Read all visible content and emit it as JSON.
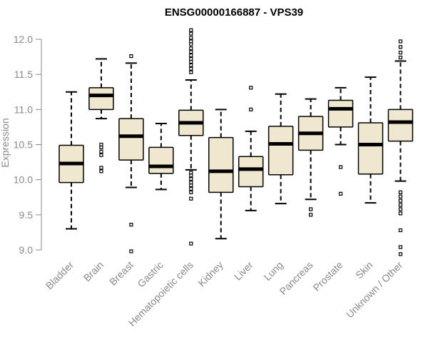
{
  "chart_data": {
    "type": "box",
    "title": "ENSG00000166887 - VPS39",
    "xlabel": "",
    "ylabel": "Expression",
    "ylim": [
      8.9,
      12.15
    ],
    "yticks": [
      9.0,
      9.5,
      10.0,
      10.5,
      11.0,
      11.5,
      12.0
    ],
    "ytick_labels": [
      "9.0",
      "9.5",
      "10.0",
      "10.5",
      "11.0",
      "11.5",
      "12.0"
    ],
    "box_color": "#efe8cf",
    "categories": [
      "Bladder",
      "Brain",
      "Breast",
      "Gastric",
      "Hematopoietic cells",
      "Kidney",
      "Liver",
      "Lung",
      "Pancreas",
      "Prostate",
      "Skin",
      "Unknown / Other"
    ],
    "boxes": [
      {
        "whisker_low": 9.3,
        "q1": 9.96,
        "median": 10.23,
        "q3": 10.49,
        "whisker_high": 11.25,
        "outliers": []
      },
      {
        "whisker_low": 10.87,
        "q1": 11.0,
        "median": 11.2,
        "q3": 11.31,
        "whisker_high": 11.72,
        "outliers": [
          10.5,
          10.46,
          10.4,
          10.35,
          10.17,
          10.12
        ]
      },
      {
        "whisker_low": 9.89,
        "q1": 10.28,
        "median": 10.62,
        "q3": 10.87,
        "whisker_high": 11.66,
        "outliers": [
          11.76,
          9.36,
          8.98
        ]
      },
      {
        "whisker_low": 9.86,
        "q1": 10.09,
        "median": 10.19,
        "q3": 10.46,
        "whisker_high": 10.8,
        "outliers": []
      },
      {
        "whisker_low": 10.14,
        "q1": 10.63,
        "median": 10.81,
        "q3": 10.99,
        "whisker_high": 11.42,
        "outliers": [
          12.13,
          12.08,
          12.02,
          11.97,
          11.93,
          11.87,
          11.82,
          11.77,
          11.72,
          11.68,
          11.63,
          11.58,
          11.53,
          10.1,
          10.06,
          10.01,
          9.96,
          9.92,
          9.87,
          9.82,
          9.73,
          9.09
        ]
      },
      {
        "whisker_low": 9.16,
        "q1": 9.82,
        "median": 10.12,
        "q3": 10.6,
        "whisker_high": 11.0,
        "outliers": []
      },
      {
        "whisker_low": 9.56,
        "q1": 9.9,
        "median": 10.15,
        "q3": 10.33,
        "whisker_high": 10.69,
        "outliers": [
          11.31,
          11.0
        ]
      },
      {
        "whisker_low": 9.66,
        "q1": 10.07,
        "median": 10.51,
        "q3": 10.76,
        "whisker_high": 11.22,
        "outliers": []
      },
      {
        "whisker_low": 9.72,
        "q1": 10.42,
        "median": 10.66,
        "q3": 10.9,
        "whisker_high": 11.15,
        "outliers": [
          9.58,
          9.5
        ]
      },
      {
        "whisker_low": 10.5,
        "q1": 10.75,
        "median": 11.01,
        "q3": 11.13,
        "whisker_high": 11.31,
        "outliers": [
          10.18,
          9.8
        ]
      },
      {
        "whisker_low": 9.67,
        "q1": 10.08,
        "median": 10.5,
        "q3": 10.81,
        "whisker_high": 11.46,
        "outliers": []
      },
      {
        "whisker_low": 9.98,
        "q1": 10.55,
        "median": 10.82,
        "q3": 11.0,
        "whisker_high": 11.69,
        "outliers": [
          11.97,
          11.89,
          11.81,
          11.74,
          9.82,
          9.76,
          9.7,
          9.64,
          9.58,
          9.52,
          9.28,
          9.04,
          8.94
        ]
      }
    ]
  }
}
